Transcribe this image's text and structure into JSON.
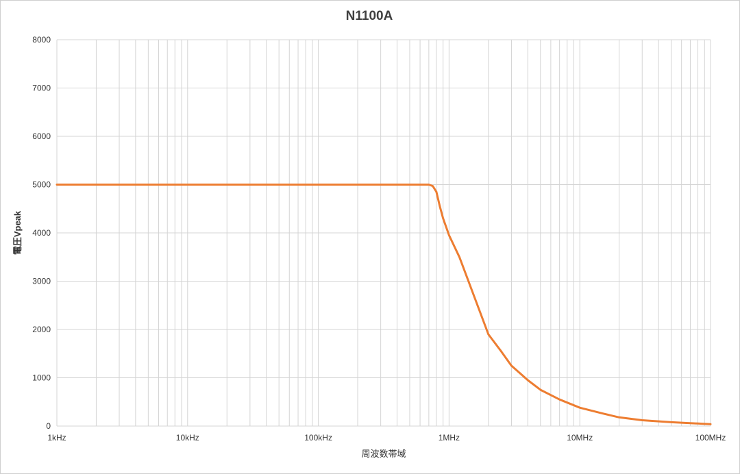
{
  "chart_data": {
    "type": "line",
    "title": "N1100A",
    "xlabel": "周波数帯域",
    "ylabel": "電圧Vpeak",
    "x_scale": "log",
    "x_unit": "Hz",
    "xlim": [
      1000,
      100000000
    ],
    "ylim": [
      0,
      8000
    ],
    "y_ticks": [
      0,
      1000,
      2000,
      3000,
      4000,
      5000,
      6000,
      7000,
      8000
    ],
    "x_ticks": [
      {
        "value": 1000,
        "label": "1kHz"
      },
      {
        "value": 10000,
        "label": "10kHz"
      },
      {
        "value": 100000,
        "label": "100kHz"
      },
      {
        "value": 1000000,
        "label": "1MHz"
      },
      {
        "value": 10000000,
        "label": "10MHz"
      },
      {
        "value": 100000000,
        "label": "100MHz"
      }
    ],
    "grid": true,
    "series": [
      {
        "color": "#ED7D31",
        "points": [
          [
            1000,
            5000
          ],
          [
            10000,
            5000
          ],
          [
            100000,
            5000
          ],
          [
            650000,
            5000
          ],
          [
            700000,
            5000
          ],
          [
            750000,
            4970
          ],
          [
            800000,
            4850
          ],
          [
            850000,
            4550
          ],
          [
            900000,
            4300
          ],
          [
            1000000,
            3950
          ],
          [
            1200000,
            3500
          ],
          [
            1500000,
            2800
          ],
          [
            2000000,
            1900
          ],
          [
            2500000,
            1550
          ],
          [
            3000000,
            1250
          ],
          [
            4000000,
            950
          ],
          [
            5000000,
            750
          ],
          [
            7000000,
            550
          ],
          [
            10000000,
            380
          ],
          [
            15000000,
            260
          ],
          [
            20000000,
            180
          ],
          [
            30000000,
            120
          ],
          [
            50000000,
            80
          ],
          [
            100000000,
            40
          ]
        ]
      }
    ]
  }
}
